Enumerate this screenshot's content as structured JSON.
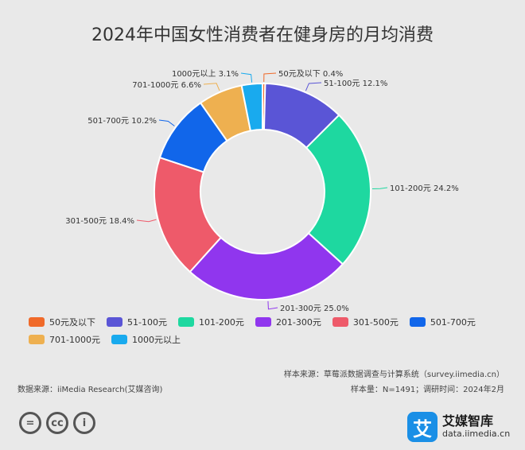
{
  "chart_data": {
    "type": "pie",
    "title": "2024年中国女性消费者在健身房的月均消费",
    "categories": [
      "50元及以下",
      "51-100元",
      "101-200元",
      "201-300元",
      "301-500元",
      "501-700元",
      "701-1000元",
      "1000元以上"
    ],
    "values": [
      0.4,
      12.1,
      24.2,
      25.0,
      18.4,
      10.2,
      6.6,
      3.1
    ],
    "labels": [
      "50元及以下 0.4%",
      "51-100元 12.1%",
      "101-200元 24.2%",
      "201-300元 25.0%",
      "301-500元 18.4%",
      "501-700元 10.2%",
      "701-1000元 6.6%",
      "1000元以上 3.1%"
    ],
    "colors": [
      "#f06a2a",
      "#5a55d6",
      "#1ed8a0",
      "#9036ee",
      "#ee5a6a",
      "#1166ea",
      "#eeb050",
      "#19aaee"
    ],
    "legend": "bottom"
  },
  "footer": {
    "sample_source": "样本来源：草莓派数据调查与计算系统（survey.iimedia.cn）",
    "data_source": "数据来源：iiMedia Research(艾媒咨询)",
    "sample_info": "样本量：N=1491；调研时间：2024年2月"
  },
  "license_icons": [
    "equals-icon",
    "cc-icon",
    "person-icon"
  ],
  "cc_labels": [
    "=",
    "cc",
    "i"
  ],
  "brand": {
    "logo": "艾",
    "name": "艾媒智库",
    "url": "data.iimedia.cn"
  }
}
